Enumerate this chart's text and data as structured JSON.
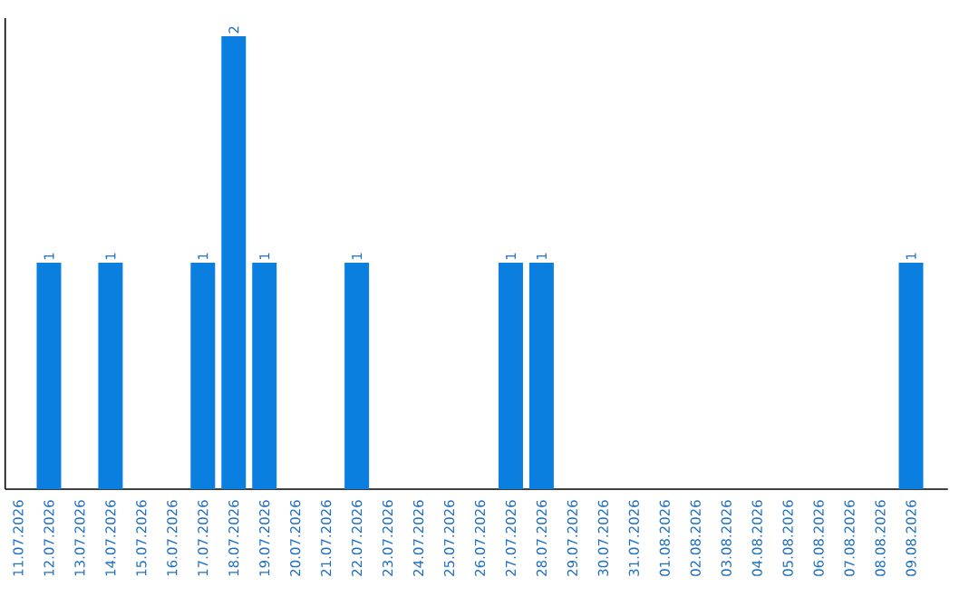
{
  "chart_data": {
    "type": "bar",
    "color": "#0a7fe0",
    "categories": [
      "11.07.2026",
      "12.07.2026",
      "13.07.2026",
      "14.07.2026",
      "15.07.2026",
      "16.07.2026",
      "17.07.2026",
      "18.07.2026",
      "19.07.2026",
      "20.07.2026",
      "21.07.2026",
      "22.07.2026",
      "23.07.2026",
      "24.07.2026",
      "25.07.2026",
      "26.07.2026",
      "27.07.2026",
      "28.07.2026",
      "29.07.2026",
      "30.07.2026",
      "31.07.2026",
      "01.08.2026",
      "02.08.2026",
      "03.08.2026",
      "04.08.2026",
      "05.08.2026",
      "06.08.2026",
      "07.08.2026",
      "08.08.2026",
      "09.08.2026"
    ],
    "values": [
      0,
      1,
      0,
      1,
      0,
      0,
      1,
      2,
      1,
      0,
      0,
      1,
      0,
      0,
      0,
      0,
      1,
      1,
      0,
      0,
      0,
      0,
      0,
      0,
      0,
      0,
      0,
      0,
      0,
      1
    ],
    "value_labels": [
      null,
      "1",
      null,
      "1",
      null,
      null,
      "1",
      "2",
      "1",
      null,
      null,
      "1",
      null,
      null,
      null,
      null,
      "1",
      "1",
      null,
      null,
      null,
      null,
      null,
      null,
      null,
      null,
      null,
      null,
      null,
      "1"
    ],
    "ylim": [
      0,
      2.08
    ],
    "tick_labels": "x"
  }
}
